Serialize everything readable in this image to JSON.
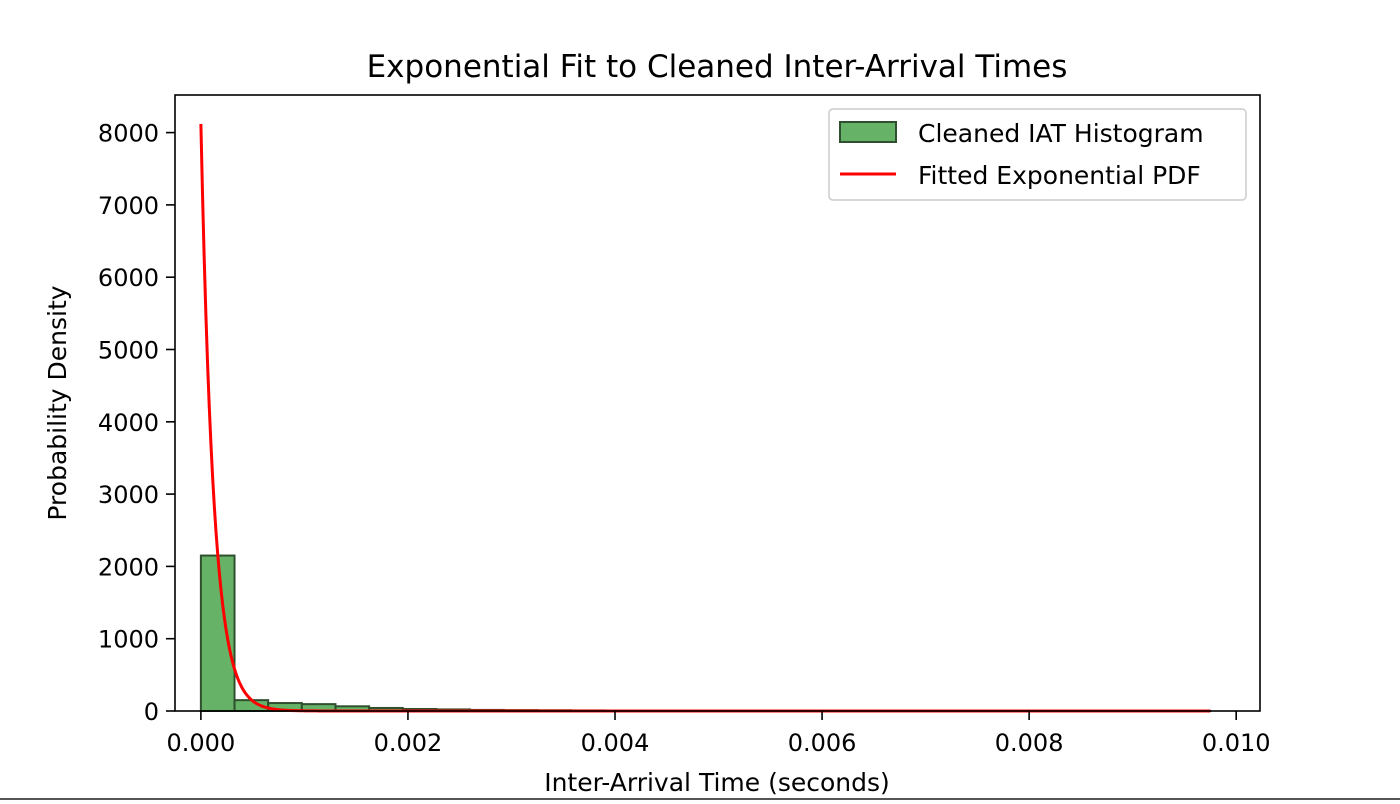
{
  "chart_data": {
    "type": "bar",
    "title": "Exponential Fit to Cleaned Inter-Arrival Times",
    "xlabel": "Inter-Arrival Time (seconds)",
    "ylabel": "Probability Density",
    "xlim": [
      -0.00025,
      0.01023
    ],
    "ylim": [
      0,
      8520
    ],
    "x_ticks": [
      0.0,
      0.002,
      0.004,
      0.006,
      0.008,
      0.01
    ],
    "x_tick_labels": [
      "0.000",
      "0.002",
      "0.004",
      "0.006",
      "0.008",
      "0.010"
    ],
    "y_ticks": [
      0,
      1000,
      2000,
      3000,
      4000,
      5000,
      6000,
      7000,
      8000
    ],
    "y_tick_labels": [
      "0",
      "1000",
      "2000",
      "3000",
      "4000",
      "5000",
      "6000",
      "7000",
      "8000"
    ],
    "grid": false,
    "legend_position": "top-right",
    "histogram": {
      "name": "Cleaned IAT Histogram",
      "color": "#66b266",
      "edge_color": "#2f4f2f",
      "bin_start": 0.0,
      "bin_width": 0.000325,
      "values": [
        2150,
        150,
        110,
        95,
        65,
        42,
        28,
        22,
        15,
        12,
        10,
        8,
        6,
        4,
        3,
        2,
        2,
        1,
        1,
        1,
        1,
        1,
        1,
        1,
        1,
        1,
        1,
        1,
        1,
        1
      ]
    },
    "fit": {
      "name": "Fitted Exponential PDF",
      "type": "line",
      "color": "#ff0000",
      "rate": 8120,
      "x_range": [
        0.0,
        0.00975
      ]
    }
  }
}
